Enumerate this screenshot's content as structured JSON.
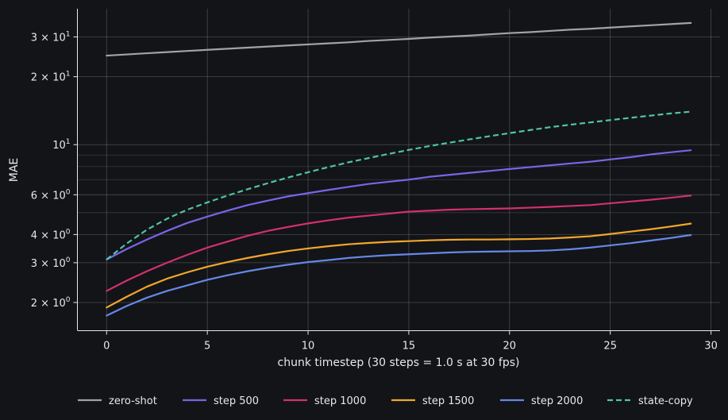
{
  "chart_data": {
    "type": "line",
    "xlabel": "chunk timestep (30 steps = 1.0 s at 30 fps)",
    "ylabel": "MAE",
    "xlim": [
      -1.45,
      30.45
    ],
    "ylim": [
      1.5,
      40
    ],
    "yscale": "log",
    "grid": true,
    "legend_position": "bottom",
    "x_ticks": [
      0,
      5,
      10,
      15,
      20,
      25,
      30
    ],
    "x_tick_labels": [
      "0",
      "5",
      "10",
      "15",
      "20",
      "25",
      "30"
    ],
    "y_ticks": [
      {
        "value": 2,
        "base": "2 × 10",
        "exp": "0"
      },
      {
        "value": 3,
        "base": "3 × 10",
        "exp": "0"
      },
      {
        "value": 4,
        "base": "4 × 10",
        "exp": "0"
      },
      {
        "value": 6,
        "base": "6 × 10",
        "exp": "0"
      },
      {
        "value": 10,
        "base": "10",
        "exp": "1"
      },
      {
        "value": 20,
        "base": "2 × 10",
        "exp": "1"
      },
      {
        "value": 30,
        "base": "3 × 10",
        "exp": "1"
      }
    ],
    "y_minor_grid": [
      5,
      7,
      8,
      9
    ],
    "x": [
      0,
      1,
      2,
      3,
      4,
      5,
      6,
      7,
      8,
      9,
      10,
      11,
      12,
      13,
      14,
      15,
      16,
      17,
      18,
      19,
      20,
      21,
      22,
      23,
      24,
      25,
      26,
      27,
      28,
      29
    ],
    "series": [
      {
        "name": "zero-shot",
        "color": "#a3a3a3",
        "dashed": false,
        "values": [
          24.8,
          25.1,
          25.4,
          25.7,
          26.0,
          26.3,
          26.6,
          26.9,
          27.2,
          27.5,
          27.8,
          28.1,
          28.4,
          28.8,
          29.1,
          29.4,
          29.8,
          30.1,
          30.4,
          30.8,
          31.2,
          31.5,
          31.9,
          32.3,
          32.6,
          33.0,
          33.4,
          33.8,
          34.2,
          34.6
        ]
      },
      {
        "name": "step 500",
        "color": "#7a64e6",
        "dashed": false,
        "values": [
          3.1,
          3.45,
          3.8,
          4.15,
          4.5,
          4.8,
          5.1,
          5.4,
          5.65,
          5.9,
          6.1,
          6.3,
          6.5,
          6.7,
          6.85,
          7.0,
          7.2,
          7.35,
          7.5,
          7.65,
          7.8,
          7.95,
          8.1,
          8.25,
          8.4,
          8.6,
          8.8,
          9.05,
          9.25,
          9.45
        ]
      },
      {
        "name": "step 1000",
        "color": "#d3306f",
        "dashed": false,
        "values": [
          2.25,
          2.5,
          2.75,
          3.0,
          3.25,
          3.5,
          3.72,
          3.95,
          4.15,
          4.32,
          4.48,
          4.62,
          4.75,
          4.85,
          4.95,
          5.05,
          5.1,
          5.15,
          5.18,
          5.2,
          5.22,
          5.26,
          5.3,
          5.35,
          5.4,
          5.5,
          5.6,
          5.7,
          5.82,
          5.95
        ]
      },
      {
        "name": "step 1500",
        "color": "#f2a72b",
        "dashed": false,
        "values": [
          1.9,
          2.12,
          2.35,
          2.55,
          2.72,
          2.88,
          3.02,
          3.15,
          3.27,
          3.38,
          3.47,
          3.55,
          3.62,
          3.67,
          3.71,
          3.74,
          3.77,
          3.79,
          3.8,
          3.8,
          3.81,
          3.82,
          3.84,
          3.88,
          3.93,
          4.02,
          4.12,
          4.22,
          4.34,
          4.47
        ]
      },
      {
        "name": "step 2000",
        "color": "#6688e6",
        "dashed": false,
        "values": [
          1.75,
          1.93,
          2.1,
          2.25,
          2.38,
          2.52,
          2.64,
          2.75,
          2.85,
          2.94,
          3.02,
          3.08,
          3.15,
          3.2,
          3.24,
          3.27,
          3.3,
          3.33,
          3.35,
          3.36,
          3.37,
          3.38,
          3.4,
          3.44,
          3.5,
          3.58,
          3.66,
          3.76,
          3.86,
          3.98
        ]
      },
      {
        "name": "state-copy",
        "color": "#4fc4a4",
        "dashed": true,
        "values": [
          3.1,
          3.65,
          4.2,
          4.7,
          5.15,
          5.55,
          5.95,
          6.35,
          6.75,
          7.15,
          7.55,
          7.95,
          8.35,
          8.72,
          9.1,
          9.48,
          9.85,
          10.2,
          10.55,
          10.9,
          11.25,
          11.6,
          11.95,
          12.25,
          12.55,
          12.85,
          13.15,
          13.45,
          13.75,
          14.0
        ]
      }
    ]
  }
}
